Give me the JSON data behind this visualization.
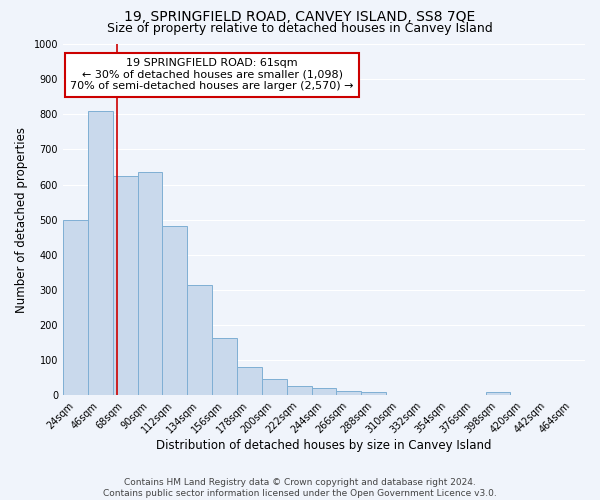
{
  "title": "19, SPRINGFIELD ROAD, CANVEY ISLAND, SS8 7QE",
  "subtitle": "Size of property relative to detached houses in Canvey Island",
  "xlabel": "Distribution of detached houses by size in Canvey Island",
  "ylabel": "Number of detached properties",
  "footer_line1": "Contains HM Land Registry data © Crown copyright and database right 2024.",
  "footer_line2": "Contains public sector information licensed under the Open Government Licence v3.0.",
  "bar_labels": [
    "24sqm",
    "46sqm",
    "68sqm",
    "90sqm",
    "112sqm",
    "134sqm",
    "156sqm",
    "178sqm",
    "200sqm",
    "222sqm",
    "244sqm",
    "266sqm",
    "288sqm",
    "310sqm",
    "332sqm",
    "354sqm",
    "376sqm",
    "398sqm",
    "420sqm",
    "442sqm",
    "464sqm"
  ],
  "bar_values": [
    500,
    810,
    625,
    635,
    483,
    313,
    163,
    80,
    48,
    27,
    22,
    13,
    11,
    0,
    0,
    0,
    0,
    10,
    0,
    0,
    0
  ],
  "bar_color": "#c9d9ec",
  "bar_edge_color": "#7fafd4",
  "vline_x": 1.68,
  "vline_color": "#cc0000",
  "annotation_title": "19 SPRINGFIELD ROAD: 61sqm",
  "annotation_line1": "← 30% of detached houses are smaller (1,098)",
  "annotation_line2": "70% of semi-detached houses are larger (2,570) →",
  "annotation_box_color": "#ffffff",
  "annotation_box_edge": "#cc0000",
  "ylim": [
    0,
    1000
  ],
  "yticks": [
    0,
    100,
    200,
    300,
    400,
    500,
    600,
    700,
    800,
    900,
    1000
  ],
  "background_color": "#f0f4fb",
  "grid_color": "#ffffff",
  "title_fontsize": 10,
  "subtitle_fontsize": 9,
  "ylabel_fontsize": 8.5,
  "xlabel_fontsize": 8.5,
  "tick_fontsize": 7,
  "annotation_fontsize": 8,
  "footer_fontsize": 6.5
}
